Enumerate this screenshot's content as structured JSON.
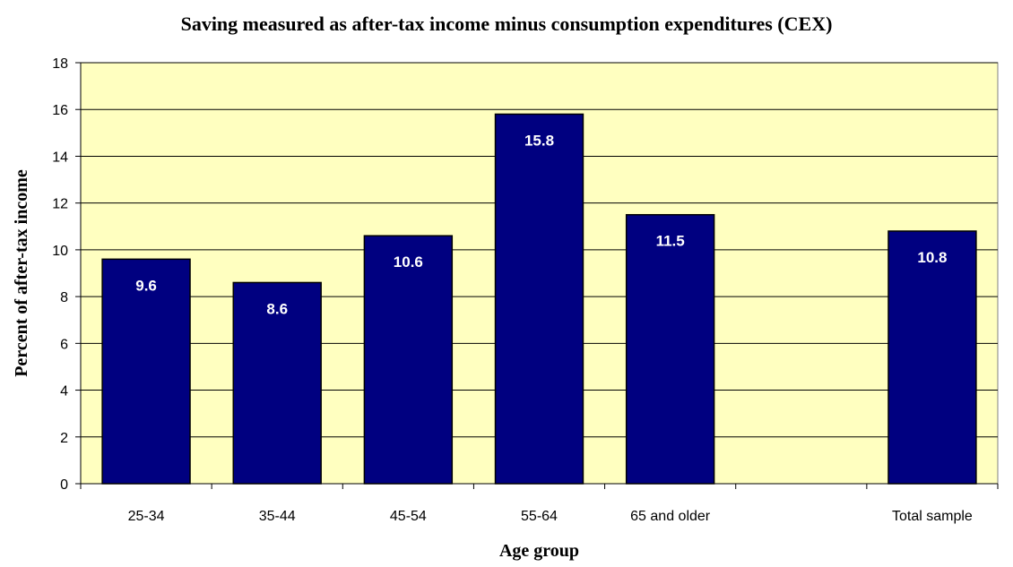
{
  "chart_data": {
    "type": "bar",
    "title": "Saving measured as after-tax income minus consumption expenditures (CEX)",
    "xlabel": "Age group",
    "ylabel": "Percent of after-tax income",
    "categories": [
      "25-34",
      "35-44",
      "45-54",
      "55-64",
      "65 and older",
      "",
      "Total sample"
    ],
    "values": [
      9.6,
      8.6,
      10.6,
      15.8,
      11.5,
      null,
      10.8
    ],
    "data_labels": [
      "9.6",
      "8.6",
      "10.6",
      "15.8",
      "11.5",
      "",
      "10.8"
    ],
    "ylim": [
      0,
      18
    ],
    "yticks": [
      "0",
      "2",
      "4",
      "6",
      "8",
      "10",
      "12",
      "14",
      "16",
      "18"
    ],
    "grid": true,
    "legend": "none",
    "colors": {
      "bar": "#000080",
      "plot_background": "#ffffc0",
      "gridline": "#000000"
    }
  }
}
